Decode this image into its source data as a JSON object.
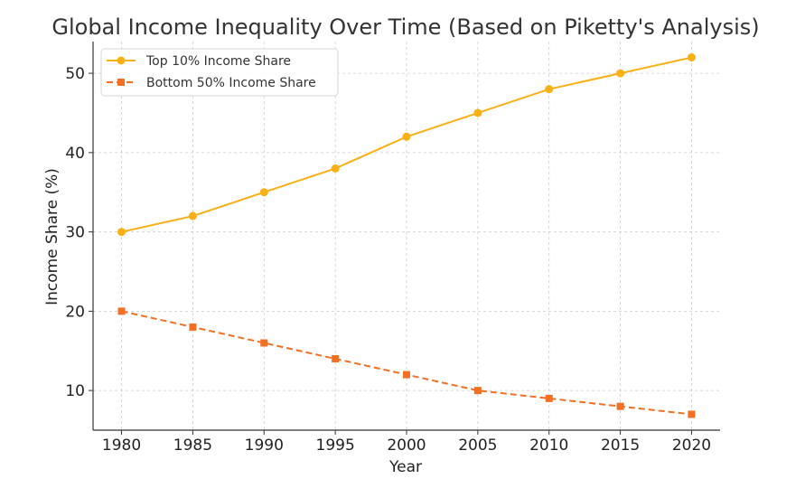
{
  "chart_data": {
    "type": "line",
    "title": "Global Income Inequality Over Time (Based on Piketty's Analysis)",
    "xlabel": "Year",
    "ylabel": "Income Share (%)",
    "x": [
      1980,
      1985,
      1990,
      1995,
      2000,
      2005,
      2010,
      2015,
      2020
    ],
    "x_ticks": [
      "1980",
      "1985",
      "1990",
      "1995",
      "2000",
      "2005",
      "2010",
      "2015",
      "2020"
    ],
    "y_ticks": [
      "10",
      "20",
      "30",
      "40",
      "50"
    ],
    "xlim": [
      1978,
      2022
    ],
    "ylim": [
      5,
      54
    ],
    "grid": true,
    "legend_position": "top-left",
    "series": [
      {
        "name": "Top 10% Income Share",
        "values": [
          30,
          32,
          35,
          38,
          42,
          45,
          48,
          50,
          52
        ],
        "color": "#F9B014",
        "line_style": "solid",
        "marker": "circle"
      },
      {
        "name": "Bottom 50% Income Share",
        "values": [
          20,
          18,
          16,
          14,
          12,
          10,
          9,
          8,
          7
        ],
        "color": "#F36F21",
        "line_style": "dashed",
        "marker": "square"
      }
    ]
  }
}
